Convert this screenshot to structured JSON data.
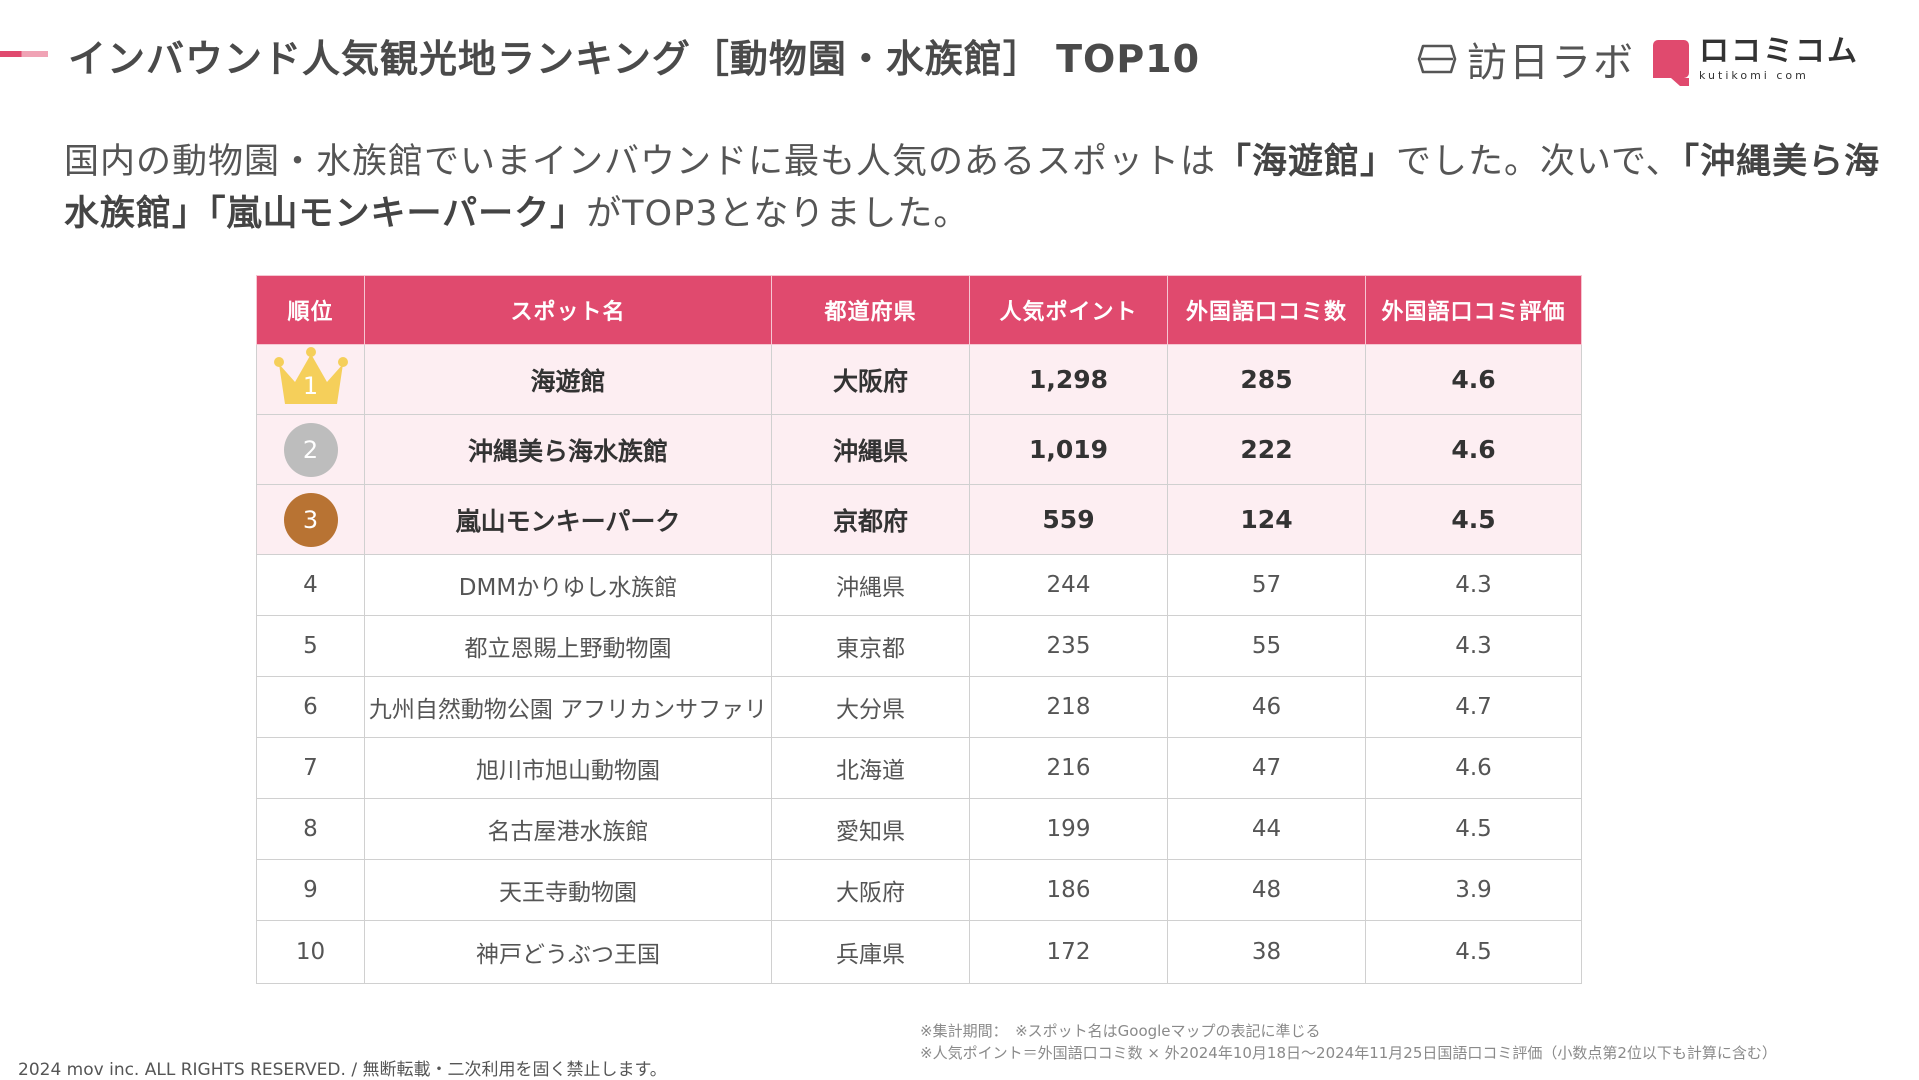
{
  "header": {
    "title": "インバウンド人気観光地ランキング［動物園・水族館］ TOP10",
    "logo_houjin": "訪日ラボ",
    "logo_kuchikomi_main": "ロコミコム",
    "logo_kuchikomi_sub": "kutikomi com"
  },
  "lead": {
    "part1": "国内の動物園・水族館でいまインバウンドに最も人気のあるスポットは",
    "spot1": "「海遊館」",
    "part2": "でした。次いで、",
    "spot2": "「沖縄美ら海水族館」",
    "spot3": "「嵐山モンキーパーク」",
    "part3": "がTOP3となりました。"
  },
  "colors": {
    "accent": "#e04a6e",
    "top_row_bg": "#fdeef2",
    "gold": "#f5cf5a",
    "silver": "#bdbdbd",
    "bronze": "#b87333"
  },
  "chart_data": {
    "type": "table",
    "columns": [
      "順位",
      "スポット名",
      "都道府県",
      "人気ポイント",
      "外国語口コミ数",
      "外国語口コミ評価"
    ],
    "rows": [
      {
        "rank": "1",
        "spot": "海遊館",
        "pref": "大阪府",
        "points": "1,298",
        "reviews": "285",
        "rating": "4.6",
        "medal": "gold"
      },
      {
        "rank": "2",
        "spot": "沖縄美ら海水族館",
        "pref": "沖縄県",
        "points": "1,019",
        "reviews": "222",
        "rating": "4.6",
        "medal": "silver"
      },
      {
        "rank": "3",
        "spot": "嵐山モンキーパーク",
        "pref": "京都府",
        "points": "559",
        "reviews": "124",
        "rating": "4.5",
        "medal": "bronze"
      },
      {
        "rank": "4",
        "spot": "DMMかりゆし水族館",
        "pref": "沖縄県",
        "points": "244",
        "reviews": "57",
        "rating": "4.3"
      },
      {
        "rank": "5",
        "spot": "都立恩賜上野動物園",
        "pref": "東京都",
        "points": "235",
        "reviews": "55",
        "rating": "4.3"
      },
      {
        "rank": "6",
        "spot": "九州自然動物公園 アフリカンサファリ",
        "pref": "大分県",
        "points": "218",
        "reviews": "46",
        "rating": "4.7"
      },
      {
        "rank": "7",
        "spot": "旭川市旭山動物園",
        "pref": "北海道",
        "points": "216",
        "reviews": "47",
        "rating": "4.6"
      },
      {
        "rank": "8",
        "spot": "名古屋港水族館",
        "pref": "愛知県",
        "points": "199",
        "reviews": "44",
        "rating": "4.5"
      },
      {
        "rank": "9",
        "spot": "天王寺動物園",
        "pref": "大阪府",
        "points": "186",
        "reviews": "48",
        "rating": "3.9"
      },
      {
        "rank": "10",
        "spot": "神戸どうぶつ王国",
        "pref": "兵庫県",
        "points": "172",
        "reviews": "38",
        "rating": "4.5"
      }
    ]
  },
  "footnotes": {
    "line1": "※集計期間：　※スポット名はGoogleマップの表記に準じる",
    "line2": "※人気ポイント＝外国語口コミ数 × 外2024年10月18日〜2024年11月25日国語口コミ評価（小数点第2位以下も計算に含む）"
  },
  "copyright": "2024 mov inc. ALL RIGHTS RESERVED. / 無断転載・二次利用を固く禁止します。"
}
